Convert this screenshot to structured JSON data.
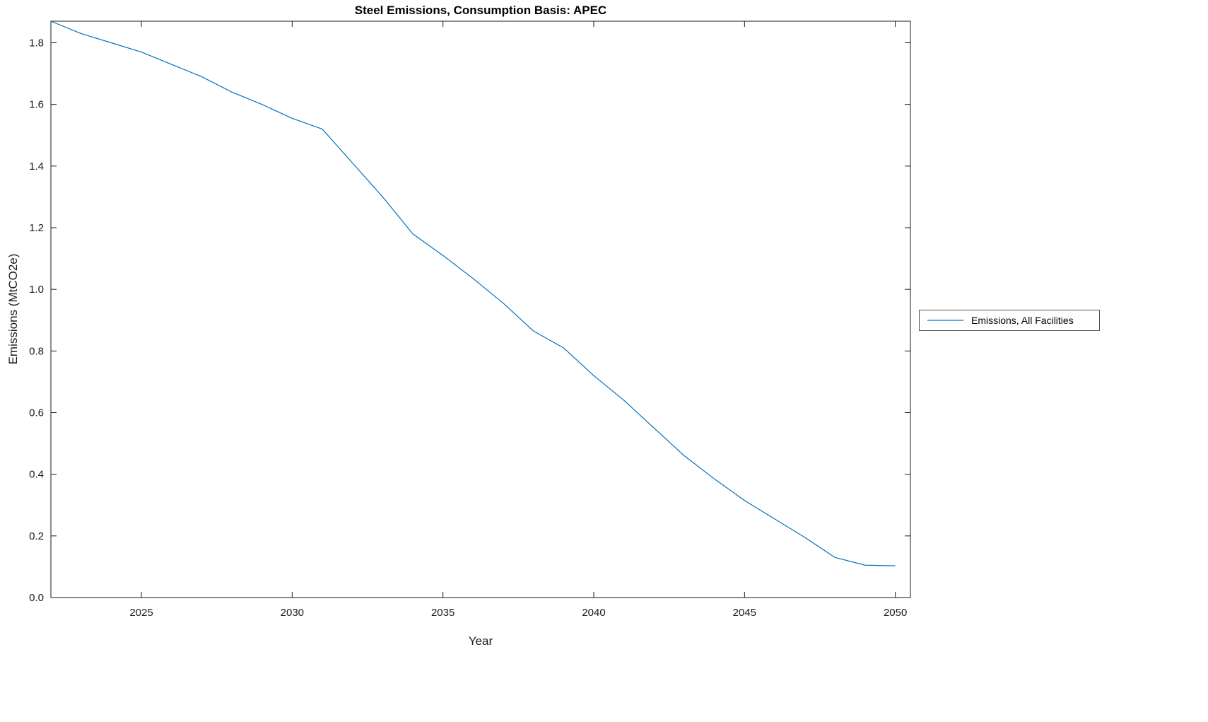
{
  "chart_data": {
    "type": "line",
    "title": "Steel Emissions, Consumption Basis: APEC",
    "xlabel": "Year",
    "ylabel": "Emissions (MtCO2e)",
    "x": [
      2022,
      2023,
      2024,
      2025,
      2026,
      2027,
      2028,
      2029,
      2030,
      2031,
      2032,
      2033,
      2034,
      2035,
      2036,
      2037,
      2038,
      2039,
      2040,
      2041,
      2042,
      2043,
      2044,
      2045,
      2046,
      2047,
      2048,
      2049,
      2050
    ],
    "series": [
      {
        "name": "Emissions, All Facilities",
        "color": "#0072BD",
        "values": [
          1.87,
          1.83,
          1.8,
          1.77,
          1.73,
          1.69,
          1.64,
          1.6,
          1.555,
          1.52,
          1.41,
          1.3,
          1.18,
          1.11,
          1.035,
          0.955,
          0.865,
          0.81,
          0.72,
          0.64,
          0.55,
          0.46,
          0.385,
          0.315,
          0.255,
          0.195,
          0.13,
          0.105,
          0.103
        ]
      }
    ],
    "xlim": [
      2022,
      2050.5
    ],
    "ylim": [
      0,
      1.87
    ],
    "xticks": [
      2025,
      2030,
      2035,
      2040,
      2045,
      2050
    ],
    "yticks": [
      0.0,
      0.2,
      0.4,
      0.6,
      0.8,
      1.0,
      1.2,
      1.4,
      1.6,
      1.8
    ],
    "grid": false,
    "legend_position": "right-outside",
    "axis_color": "#1a1a1a",
    "background_color": "#ffffff"
  }
}
